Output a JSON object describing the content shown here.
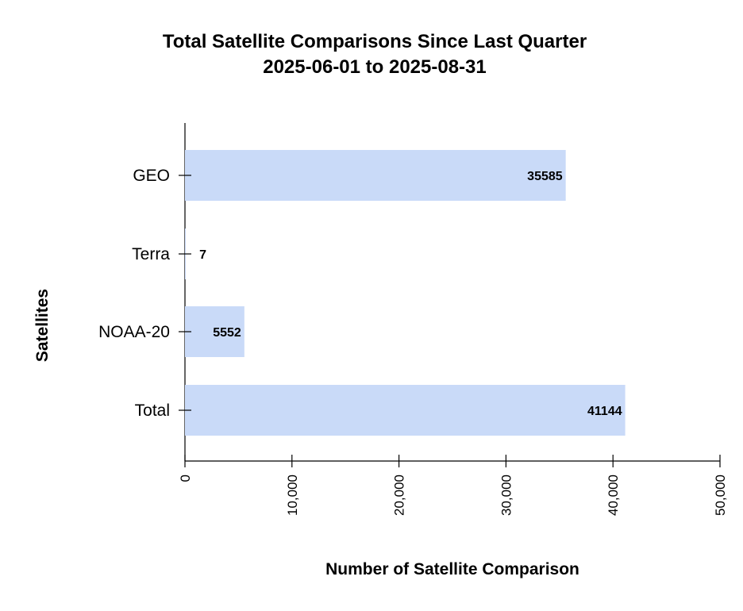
{
  "chart_data": {
    "type": "bar",
    "orientation": "horizontal",
    "title": [
      "Total Satellite Comparisons Since Last Quarter",
      "2025-06-01 to 2025-08-31"
    ],
    "xlabel": "Number of Satellite Comparison",
    "ylabel": "Satellites",
    "categories": [
      "GEO",
      "Terra",
      "NOAA-20",
      "Total"
    ],
    "values": [
      35585,
      7,
      5552,
      41144
    ],
    "data_labels": [
      "35585",
      "7",
      "5552",
      "41144"
    ],
    "xlim": [
      0,
      50000
    ],
    "xticks": [
      0,
      10000,
      20000,
      30000,
      40000,
      50000
    ],
    "xtick_labels": [
      "0",
      "10,000",
      "20,000",
      "30,000",
      "40,000",
      "50,000"
    ],
    "bar_color": "#c9daf8",
    "grid": false
  }
}
